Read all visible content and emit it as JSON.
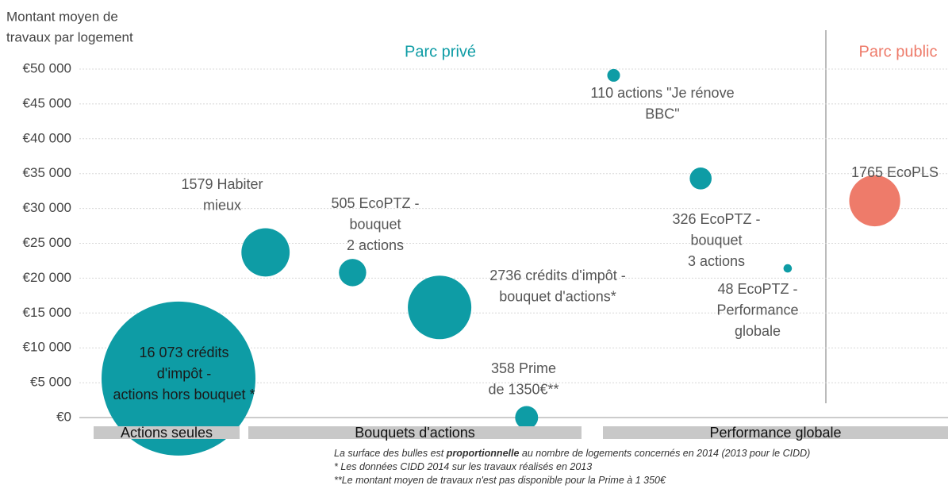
{
  "chart_data": {
    "type": "bubble",
    "y_label": [
      "Montant moyen de",
      "travaux par logement"
    ],
    "ylim": [
      0,
      50000
    ],
    "yticks": [
      {
        "value": 0,
        "label": "€0"
      },
      {
        "value": 5000,
        "label": "€5 000"
      },
      {
        "value": 10000,
        "label": "€10 000"
      },
      {
        "value": 15000,
        "label": "€15 000"
      },
      {
        "value": 20000,
        "label": "€20 000"
      },
      {
        "value": 25000,
        "label": "€25 000"
      },
      {
        "value": 30000,
        "label": "€30 000"
      },
      {
        "value": 35000,
        "label": "€35 000"
      },
      {
        "value": 40000,
        "label": "€40 000"
      },
      {
        "value": 45000,
        "label": "€45 000"
      },
      {
        "value": 50000,
        "label": "€50 000"
      }
    ],
    "grid": true,
    "series": [
      {
        "name": "Parc privé",
        "color": "#0e9ca5",
        "labels": [
          [
            "16 073 crédits",
            "d'impôt -",
            "actions hors bouquet *"
          ],
          [
            "1579 Habiter",
            "mieux"
          ],
          [
            "505 EcoPTZ -",
            "bouquet",
            "2 actions"
          ],
          [
            "2736 crédits d'impôt -",
            "bouquet d'actions*"
          ],
          [
            "358 Prime",
            "de 1350€**"
          ],
          [
            "110 actions \"Je rénove",
            "BBC\""
          ],
          [
            "326 EcoPTZ -",
            "bouquet",
            "3 actions"
          ],
          [
            "48 EcoPTZ -",
            "Performance",
            "globale"
          ]
        ],
        "values": [
          5600,
          23700,
          20800,
          15800,
          0,
          49100,
          34300,
          21400
        ],
        "sizes": [
          16073,
          1579,
          505,
          2736,
          358,
          110,
          326,
          48
        ]
      },
      {
        "name": "Parc public",
        "color": "#ee7b6a",
        "labels": [
          [
            "1765 EcoPLS"
          ]
        ],
        "values": [
          31100
        ],
        "sizes": [
          1765
        ]
      }
    ],
    "bands": [
      "Actions seules",
      "Bouquets d'actions",
      "Performance globale"
    ],
    "notes": [
      [
        "La surface des bulles est ",
        "proportionnelle",
        " au nombre de logements concernés en 2014 (2013 pour le CIDD)"
      ],
      [
        "* Les données CIDD 2014 sur les travaux réalisés en 2013"
      ],
      [
        "**Le montant moyen de travaux n'est pas disponible pour la Prime à 1 350€"
      ]
    ]
  }
}
